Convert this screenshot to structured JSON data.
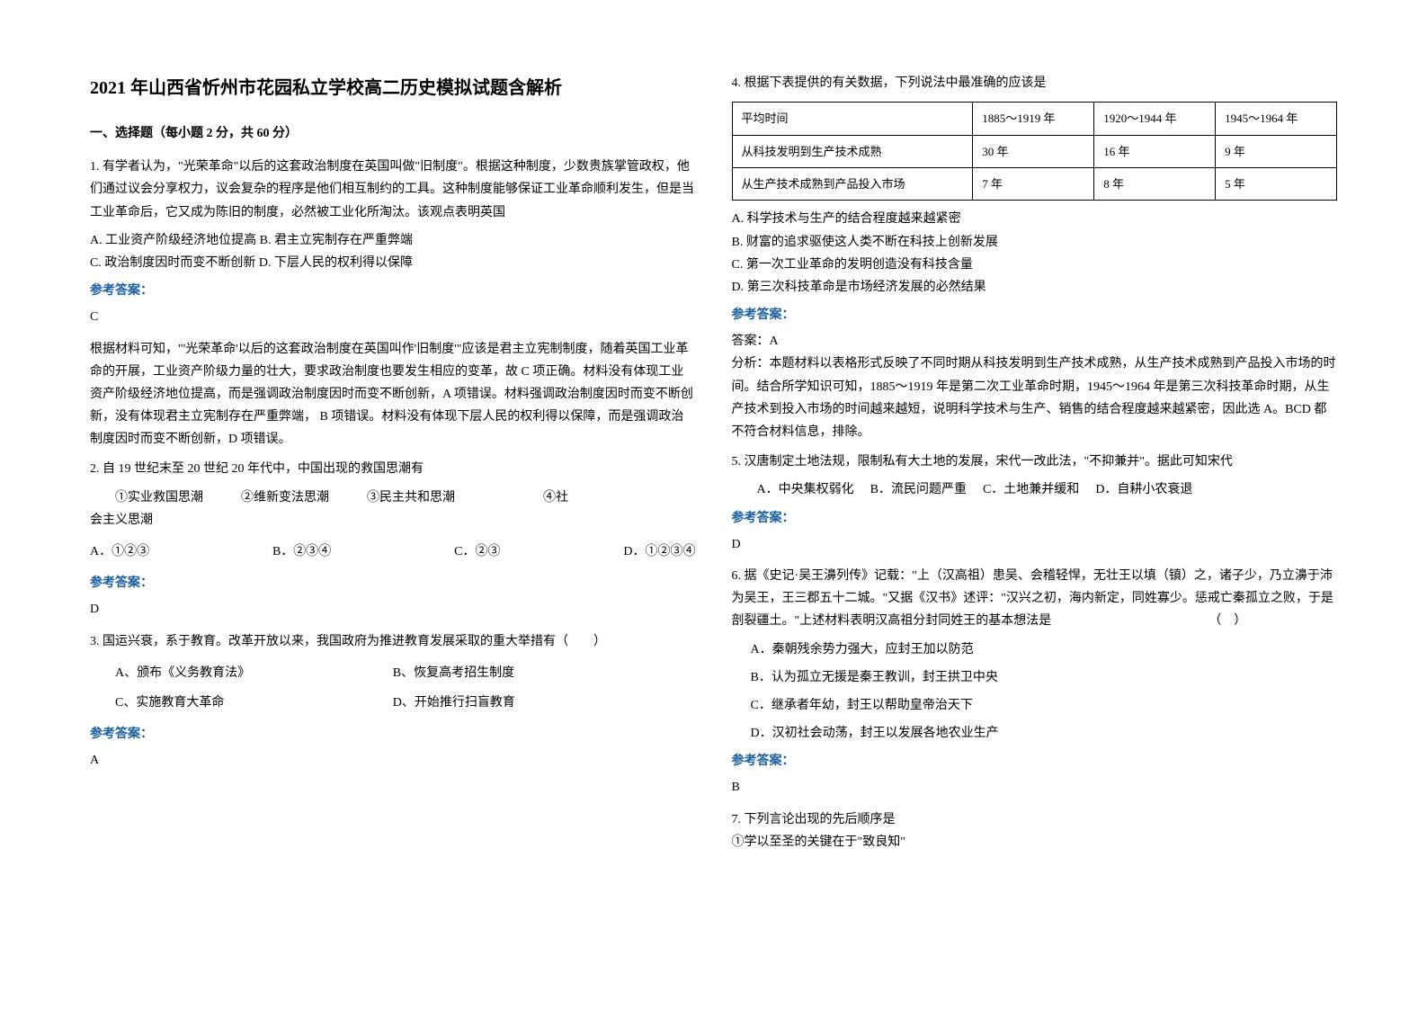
{
  "title": "2021 年山西省忻州市花园私立学校高二历史模拟试题含解析",
  "section1_header": "一、选择题（每小题 2 分，共 60 分）",
  "answer_label": "参考答案：",
  "q1": {
    "text": "1. 有学者认为，\"光荣革命\"以后的这套政治制度在英国叫做\"旧制度\"。根据这种制度，少数贵族掌管政权，他们通过议会分享权力，议会复杂的程序是他们相互制约的工具。这种制度能够保证工业革命顺利发生，但是当工业革命后，它又成为陈旧的制度，必然被工业化所淘汰。该观点表明英国",
    "options": "A. 工业资产阶级经济地位提高 B. 君主立宪制存在严重弊端",
    "options2": "C. 政治制度因时而变不断创新 D. 下层人民的权利得以保障",
    "answer": "C",
    "analysis": "根据材料可知，\"'光荣革命'以后的这套政治制度在英国叫作'旧制度'\"应该是君主立宪制制度，随着英国工业革命的开展，工业资产阶级力量的壮大，要求政治制度也要发生相应的变革，故 C 项正确。材料没有体现工业资产阶级经济地位提高，而是强调政治制度因时而变不断创新，A 项错误。材料强调政治制度因时而变不断创新，没有体现君主立宪制存在严重弊端， B 项错误。材料没有体现下层人民的权利得以保障，而是强调政治制度因时而变不断创新，D 项错误。"
  },
  "q2": {
    "text": "2. 自 19 世纪末至 20 世纪 20 年代中，中国出现的救国思潮有",
    "items_line": "①实业救国思潮　　　②维新变法思潮　　　③民主共和思潮　　　　　　　④社",
    "items_line2": "会主义思潮",
    "optA": "A．①②③",
    "optB": "B．②③④",
    "optC": "C．②③",
    "optD": "D．①②③④",
    "answer": "D"
  },
  "q3": {
    "text": "3. 国运兴衰，系于教育。改革开放以来，我国政府为推进教育发展采取的重大举措有（　　）",
    "optA": "A、颁布《义务教育法》",
    "optB": "B、恢复高考招生制度",
    "optC": "C、实施教育大革命",
    "optD": "D、开始推行扫盲教育",
    "answer": "A"
  },
  "q4": {
    "text": "4. 根据下表提供的有关数据，下列说法中最准确的应该是",
    "table": {
      "headers": [
        "平均时间",
        "1885～1919 年",
        "1920～1944 年",
        "1945～1964 年"
      ],
      "rows": [
        [
          "从科技发明到生产技术成熟",
          "30 年",
          "16 年",
          "9 年"
        ],
        [
          "从生产技术成熟到产品投入市场",
          "7 年",
          "8 年",
          "5 年"
        ]
      ]
    },
    "optA": "A. 科学技术与生产的结合程度越来越紧密",
    "optB": "B. 财富的追求驱使这人类不断在科技上创新发展",
    "optC": "C. 第一次工业革命的发明创造没有科技含量",
    "optD": "D. 第三次科技革命是市场经济发展的必然结果",
    "answer_prefix": "答案：A",
    "analysis": "分析：本题材料以表格形式反映了不同时期从科技发明到生产技术成熟，从生产技术成熟到产品投入市场的时间。结合所学知识可知，1885～1919 年是第二次工业革命时期，1945～1964 年是第三次科技革命时期，从生产技术到投入市场的时间越来越短，说明科学技术与生产、销售的结合程度越来越紧密，因此选 A。BCD 都不符合材料信息，排除。"
  },
  "q5": {
    "text": "5. 汉唐制定土地法规，限制私有大土地的发展，宋代一改此法，\"不抑兼并\"。据此可知宋代",
    "optA": "A．中央集权弱化",
    "optB": "B．流民问题严重",
    "optC": "C．土地兼并缓和",
    "optD": "D．自耕小农衰退",
    "answer": "D"
  },
  "q6": {
    "text": "6. 据《史记·吴王濞列传》记载：\"上（汉高祖）患吴、会稽轻悍，无壮王以填（镇）之，诸子少，乃立濞于沛为吴王，王三郡五十二城。\"又据《汉书》述评：\"汉兴之初，海内新定，同姓寡少。惩戒亡秦孤立之败，于是剖裂疆土。\"上述材料表明汉高祖分封同姓王的基本想法是　　　　　　　　　　　　　（　）",
    "optA": "A．秦朝残余势力强大，应封王加以防范",
    "optB": "B．认为孤立无援是秦王教训，封王拱卫中央",
    "optC": "C．继承者年幼，封王以帮助皇帝治天下",
    "optD": "D．汉初社会动荡，封王以发展各地农业生产",
    "answer": "B"
  },
  "q7": {
    "text": "7. 下列言论出现的先后顺序是",
    "item1": "①学以至圣的关键在于\"致良知\""
  }
}
